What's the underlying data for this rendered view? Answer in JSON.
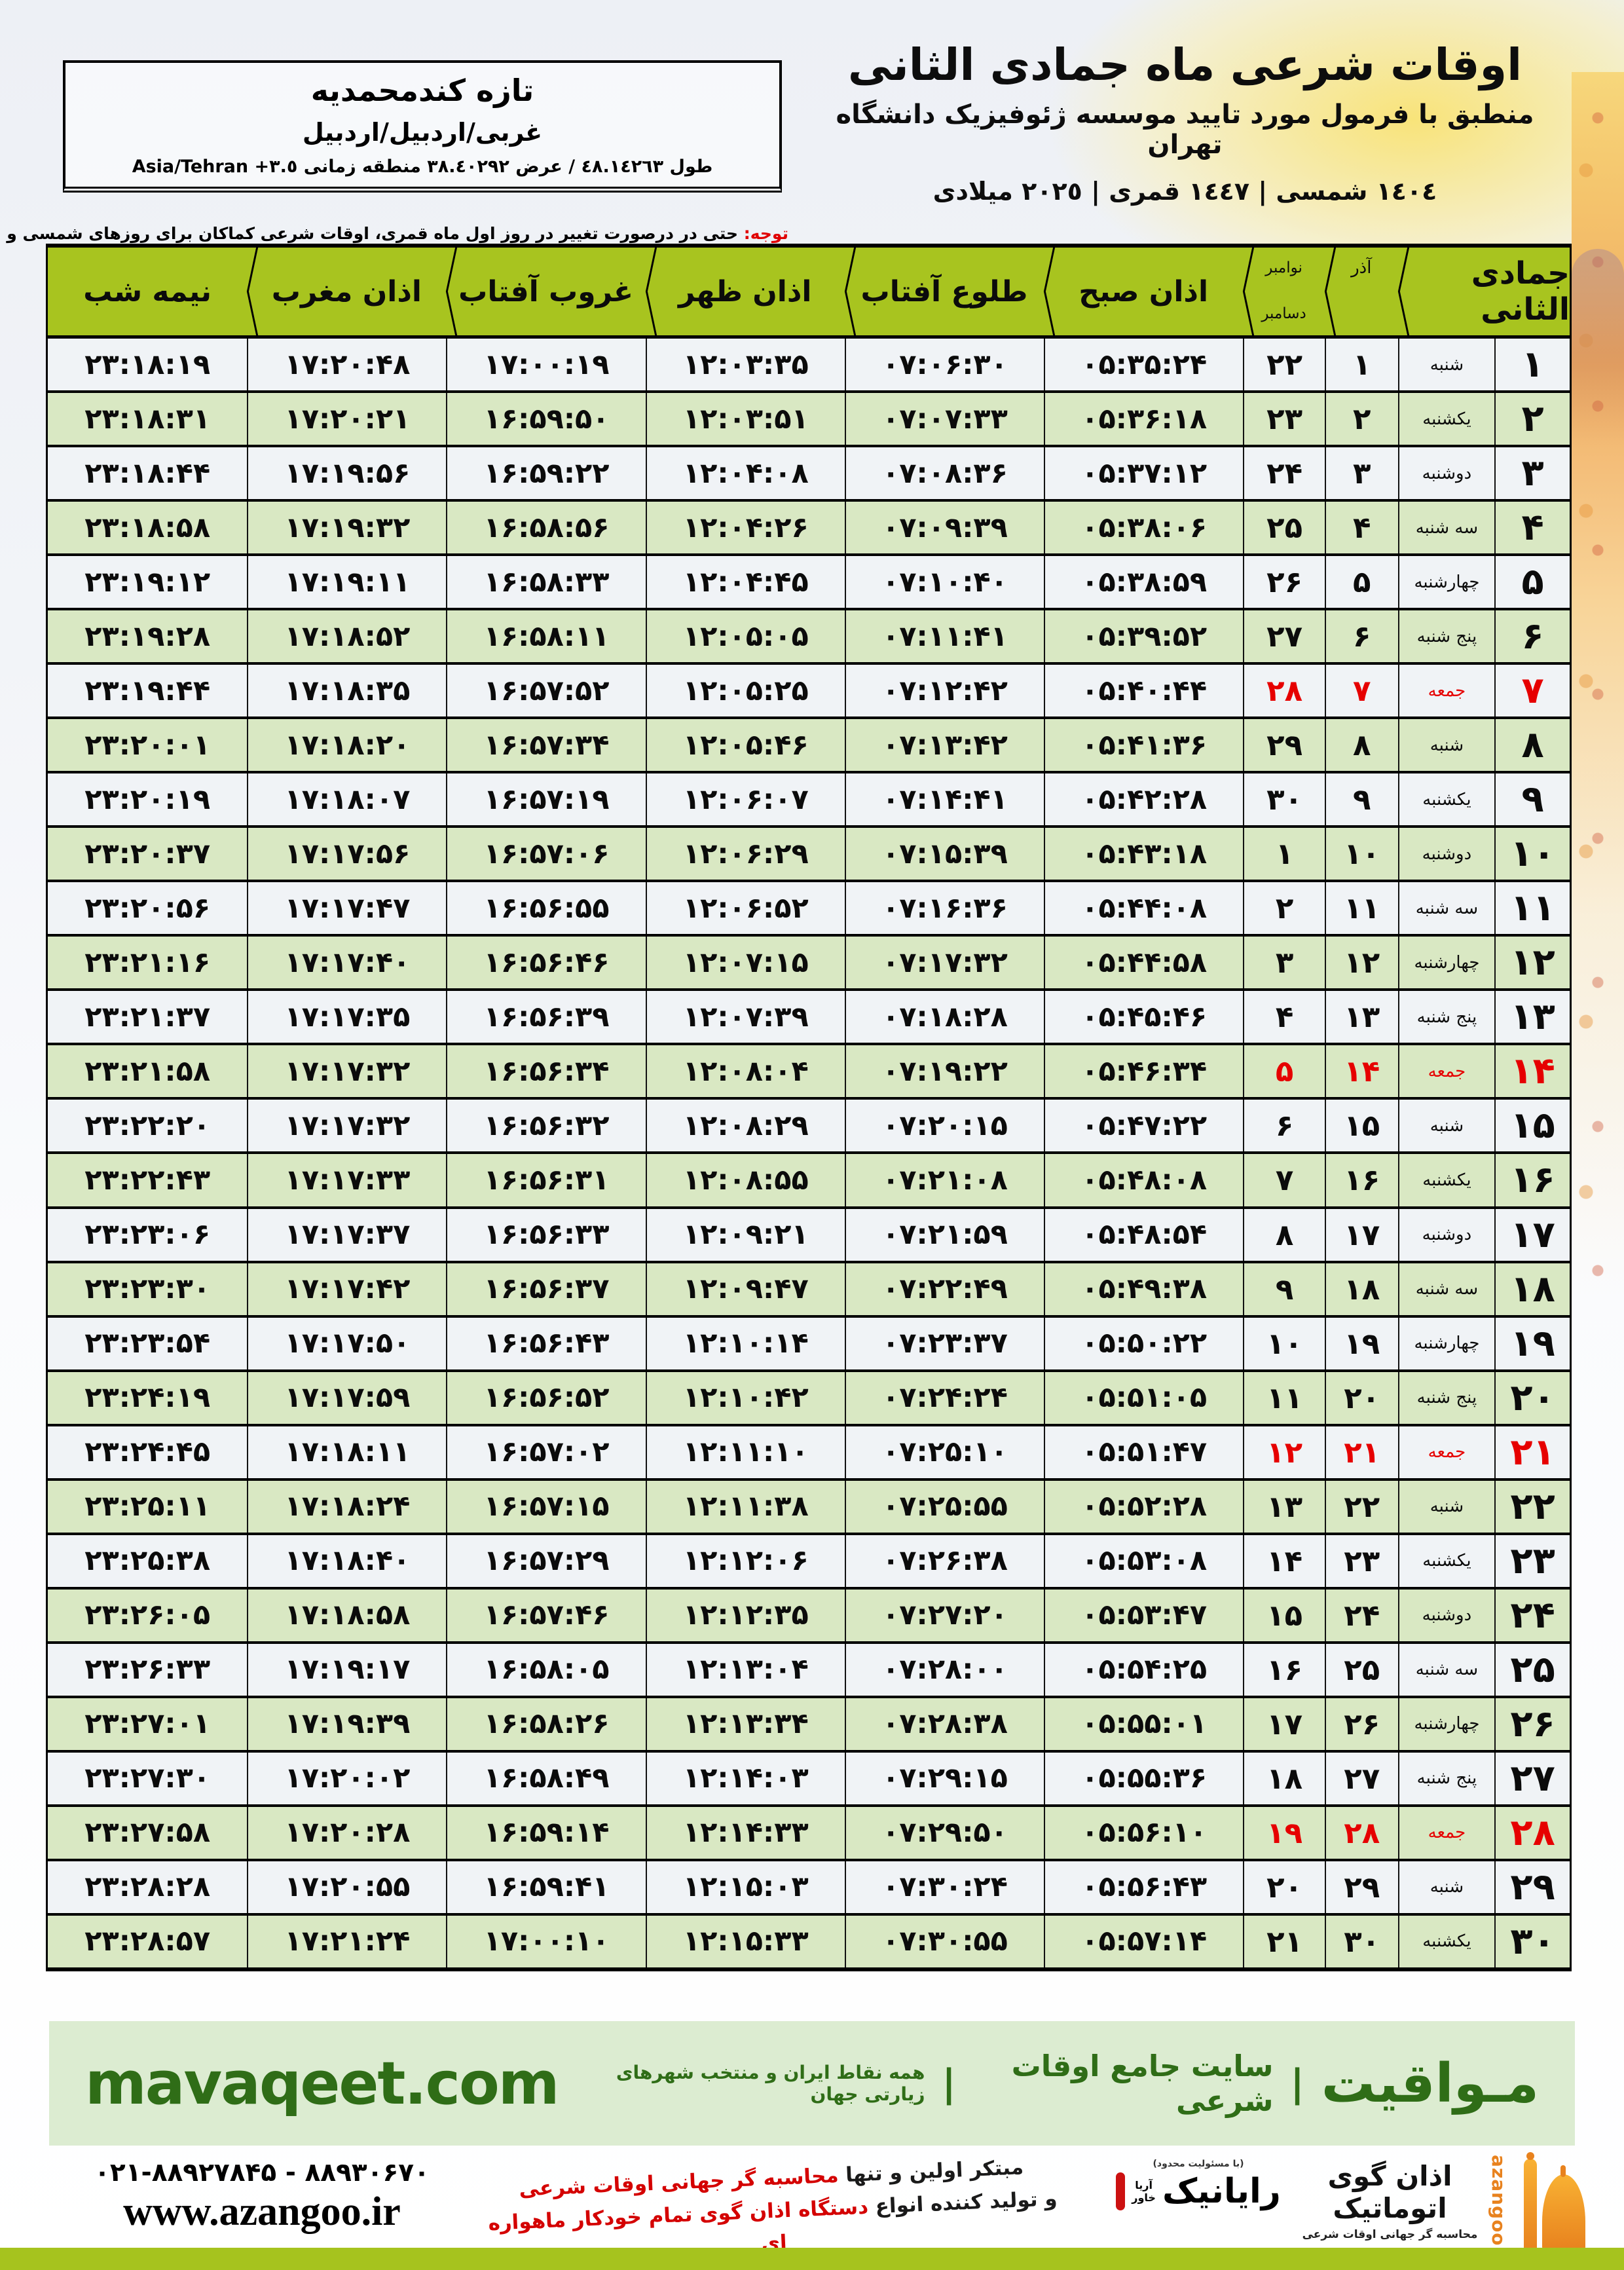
{
  "header": {
    "title": "اوقات شرعی ماه جمادی الثانی",
    "subtitle": "منطبق با فرمول مورد تایید موسسه ژئوفیزیک دانشگاه تهران",
    "year_line": "١٤٠٤ شمسی | ١٤٤٧ قمری | ٢٠٢٥ میلادی"
  },
  "location": {
    "name": "تازه کندمحمدیه",
    "region": "غربی/اردبیل/اردبیل",
    "coords_fa": "طول ٤٨.١٤٢٦٣ / عرض ٣٨.٤٠٢٩٢ منطقه زمانی",
    "coords_tz": "Asia/Tehran +٣.٥"
  },
  "notice": {
    "label": "توجه:",
    "text": " حتی در درصورت تغییر در روز اول ماه قمری، اوقات شرعی کماکان برای روزهای شمسی و میلادی معتبر است."
  },
  "table": {
    "headers": {
      "month": "جمادی الثانی",
      "solar_month": "آذر",
      "greg_top": "نوامبر",
      "greg_bottom": "دسامبر",
      "sobh": "اذان صبح",
      "tolu": "طلوع آفتاب",
      "zohr": "اذان ظهر",
      "ghorub": "غروب آفتاب",
      "maghreb": "اذان مغرب",
      "nimeshab": "نیمه شب"
    },
    "friday_rows": [
      7,
      14,
      21,
      28
    ],
    "rows": [
      [
        "۱",
        "شنبه",
        "۱",
        "۲۲",
        "۰۵:۳۵:۲۴",
        "۰۷:۰۶:۳۰",
        "۱۲:۰۳:۳۵",
        "۱۷:۰۰:۱۹",
        "۱۷:۲۰:۴۸",
        "۲۳:۱۸:۱۹"
      ],
      [
        "۲",
        "یکشنبه",
        "۲",
        "۲۳",
        "۰۵:۳۶:۱۸",
        "۰۷:۰۷:۳۳",
        "۱۲:۰۳:۵۱",
        "۱۶:۵۹:۵۰",
        "۱۷:۲۰:۲۱",
        "۲۳:۱۸:۳۱"
      ],
      [
        "۳",
        "دوشنبه",
        "۳",
        "۲۴",
        "۰۵:۳۷:۱۲",
        "۰۷:۰۸:۳۶",
        "۱۲:۰۴:۰۸",
        "۱۶:۵۹:۲۲",
        "۱۷:۱۹:۵۶",
        "۲۳:۱۸:۴۴"
      ],
      [
        "۴",
        "سه شنبه",
        "۴",
        "۲۵",
        "۰۵:۳۸:۰۶",
        "۰۷:۰۹:۳۹",
        "۱۲:۰۴:۲۶",
        "۱۶:۵۸:۵۶",
        "۱۷:۱۹:۳۲",
        "۲۳:۱۸:۵۸"
      ],
      [
        "۵",
        "چهارشنبه",
        "۵",
        "۲۶",
        "۰۵:۳۸:۵۹",
        "۰۷:۱۰:۴۰",
        "۱۲:۰۴:۴۵",
        "۱۶:۵۸:۳۳",
        "۱۷:۱۹:۱۱",
        "۲۳:۱۹:۱۲"
      ],
      [
        "۶",
        "پنج شنبه",
        "۶",
        "۲۷",
        "۰۵:۳۹:۵۲",
        "۰۷:۱۱:۴۱",
        "۱۲:۰۵:۰۵",
        "۱۶:۵۸:۱۱",
        "۱۷:۱۸:۵۲",
        "۲۳:۱۹:۲۸"
      ],
      [
        "۷",
        "جمعه",
        "۷",
        "۲۸",
        "۰۵:۴۰:۴۴",
        "۰۷:۱۲:۴۲",
        "۱۲:۰۵:۲۵",
        "۱۶:۵۷:۵۲",
        "۱۷:۱۸:۳۵",
        "۲۳:۱۹:۴۴"
      ],
      [
        "۸",
        "شنبه",
        "۸",
        "۲۹",
        "۰۵:۴۱:۳۶",
        "۰۷:۱۳:۴۲",
        "۱۲:۰۵:۴۶",
        "۱۶:۵۷:۳۴",
        "۱۷:۱۸:۲۰",
        "۲۳:۲۰:۰۱"
      ],
      [
        "۹",
        "یکشنبه",
        "۹",
        "۳۰",
        "۰۵:۴۲:۲۸",
        "۰۷:۱۴:۴۱",
        "۱۲:۰۶:۰۷",
        "۱۶:۵۷:۱۹",
        "۱۷:۱۸:۰۷",
        "۲۳:۲۰:۱۹"
      ],
      [
        "۱۰",
        "دوشنبه",
        "۱۰",
        "۱",
        "۰۵:۴۳:۱۸",
        "۰۷:۱۵:۳۹",
        "۱۲:۰۶:۲۹",
        "۱۶:۵۷:۰۶",
        "۱۷:۱۷:۵۶",
        "۲۳:۲۰:۳۷"
      ],
      [
        "۱۱",
        "سه شنبه",
        "۱۱",
        "۲",
        "۰۵:۴۴:۰۸",
        "۰۷:۱۶:۳۶",
        "۱۲:۰۶:۵۲",
        "۱۶:۵۶:۵۵",
        "۱۷:۱۷:۴۷",
        "۲۳:۲۰:۵۶"
      ],
      [
        "۱۲",
        "چهارشنبه",
        "۱۲",
        "۳",
        "۰۵:۴۴:۵۸",
        "۰۷:۱۷:۳۲",
        "۱۲:۰۷:۱۵",
        "۱۶:۵۶:۴۶",
        "۱۷:۱۷:۴۰",
        "۲۳:۲۱:۱۶"
      ],
      [
        "۱۳",
        "پنج شنبه",
        "۱۳",
        "۴",
        "۰۵:۴۵:۴۶",
        "۰۷:۱۸:۲۸",
        "۱۲:۰۷:۳۹",
        "۱۶:۵۶:۳۹",
        "۱۷:۱۷:۳۵",
        "۲۳:۲۱:۳۷"
      ],
      [
        "۱۴",
        "جمعه",
        "۱۴",
        "۵",
        "۰۵:۴۶:۳۴",
        "۰۷:۱۹:۲۲",
        "۱۲:۰۸:۰۴",
        "۱۶:۵۶:۳۴",
        "۱۷:۱۷:۳۲",
        "۲۳:۲۱:۵۸"
      ],
      [
        "۱۵",
        "شنبه",
        "۱۵",
        "۶",
        "۰۵:۴۷:۲۲",
        "۰۷:۲۰:۱۵",
        "۱۲:۰۸:۲۹",
        "۱۶:۵۶:۳۲",
        "۱۷:۱۷:۳۲",
        "۲۳:۲۲:۲۰"
      ],
      [
        "۱۶",
        "یکشنبه",
        "۱۶",
        "۷",
        "۰۵:۴۸:۰۸",
        "۰۷:۲۱:۰۸",
        "۱۲:۰۸:۵۵",
        "۱۶:۵۶:۳۱",
        "۱۷:۱۷:۳۳",
        "۲۳:۲۲:۴۳"
      ],
      [
        "۱۷",
        "دوشنبه",
        "۱۷",
        "۸",
        "۰۵:۴۸:۵۴",
        "۰۷:۲۱:۵۹",
        "۱۲:۰۹:۲۱",
        "۱۶:۵۶:۳۳",
        "۱۷:۱۷:۳۷",
        "۲۳:۲۳:۰۶"
      ],
      [
        "۱۸",
        "سه شنبه",
        "۱۸",
        "۹",
        "۰۵:۴۹:۳۸",
        "۰۷:۲۲:۴۹",
        "۱۲:۰۹:۴۷",
        "۱۶:۵۶:۳۷",
        "۱۷:۱۷:۴۲",
        "۲۳:۲۳:۳۰"
      ],
      [
        "۱۹",
        "چهارشنبه",
        "۱۹",
        "۱۰",
        "۰۵:۵۰:۲۲",
        "۰۷:۲۳:۳۷",
        "۱۲:۱۰:۱۴",
        "۱۶:۵۶:۴۳",
        "۱۷:۱۷:۵۰",
        "۲۳:۲۳:۵۴"
      ],
      [
        "۲۰",
        "پنج شنبه",
        "۲۰",
        "۱۱",
        "۰۵:۵۱:۰۵",
        "۰۷:۲۴:۲۴",
        "۱۲:۱۰:۴۲",
        "۱۶:۵۶:۵۲",
        "۱۷:۱۷:۵۹",
        "۲۳:۲۴:۱۹"
      ],
      [
        "۲۱",
        "جمعه",
        "۲۱",
        "۱۲",
        "۰۵:۵۱:۴۷",
        "۰۷:۲۵:۱۰",
        "۱۲:۱۱:۱۰",
        "۱۶:۵۷:۰۲",
        "۱۷:۱۸:۱۱",
        "۲۳:۲۴:۴۵"
      ],
      [
        "۲۲",
        "شنبه",
        "۲۲",
        "۱۳",
        "۰۵:۵۲:۲۸",
        "۰۷:۲۵:۵۵",
        "۱۲:۱۱:۳۸",
        "۱۶:۵۷:۱۵",
        "۱۷:۱۸:۲۴",
        "۲۳:۲۵:۱۱"
      ],
      [
        "۲۳",
        "یکشنبه",
        "۲۳",
        "۱۴",
        "۰۵:۵۳:۰۸",
        "۰۷:۲۶:۳۸",
        "۱۲:۱۲:۰۶",
        "۱۶:۵۷:۲۹",
        "۱۷:۱۸:۴۰",
        "۲۳:۲۵:۳۸"
      ],
      [
        "۲۴",
        "دوشنبه",
        "۲۴",
        "۱۵",
        "۰۵:۵۳:۴۷",
        "۰۷:۲۷:۲۰",
        "۱۲:۱۲:۳۵",
        "۱۶:۵۷:۴۶",
        "۱۷:۱۸:۵۸",
        "۲۳:۲۶:۰۵"
      ],
      [
        "۲۵",
        "سه شنبه",
        "۲۵",
        "۱۶",
        "۰۵:۵۴:۲۵",
        "۰۷:۲۸:۰۰",
        "۱۲:۱۳:۰۴",
        "۱۶:۵۸:۰۵",
        "۱۷:۱۹:۱۷",
        "۲۳:۲۶:۳۳"
      ],
      [
        "۲۶",
        "چهارشنبه",
        "۲۶",
        "۱۷",
        "۰۵:۵۵:۰۱",
        "۰۷:۲۸:۳۸",
        "۱۲:۱۳:۳۴",
        "۱۶:۵۸:۲۶",
        "۱۷:۱۹:۳۹",
        "۲۳:۲۷:۰۱"
      ],
      [
        "۲۷",
        "پنج شنبه",
        "۲۷",
        "۱۸",
        "۰۵:۵۵:۳۶",
        "۰۷:۲۹:۱۵",
        "۱۲:۱۴:۰۳",
        "۱۶:۵۸:۴۹",
        "۱۷:۲۰:۰۲",
        "۲۳:۲۷:۳۰"
      ],
      [
        "۲۸",
        "جمعه",
        "۲۸",
        "۱۹",
        "۰۵:۵۶:۱۰",
        "۰۷:۲۹:۵۰",
        "۱۲:۱۴:۳۳",
        "۱۶:۵۹:۱۴",
        "۱۷:۲۰:۲۸",
        "۲۳:۲۷:۵۸"
      ],
      [
        "۲۹",
        "شنبه",
        "۲۹",
        "۲۰",
        "۰۵:۵۶:۴۳",
        "۰۷:۳۰:۲۴",
        "۱۲:۱۵:۰۳",
        "۱۶:۵۹:۴۱",
        "۱۷:۲۰:۵۵",
        "۲۳:۲۸:۲۸"
      ],
      [
        "۳۰",
        "یکشنبه",
        "۳۰",
        "۲۱",
        "۰۵:۵۷:۱۴",
        "۰۷:۳۰:۵۵",
        "۱۲:۱۵:۳۳",
        "۱۷:۰۰:۱۰",
        "۱۷:۲۱:۲۴",
        "۲۳:۲۸:۵۷"
      ]
    ]
  },
  "footer": {
    "brand": "مـواقیت",
    "sep": "|",
    "site_desc": "سایت جامع اوقات شرعی",
    "site_desc2": "همه نقاط ایران و منتخب شهرهای زیارتی جهان",
    "site_url": "mavaqeet.com",
    "tagline1_black": "مبتکر اولین و تنها ",
    "tagline1_red": "محاسبه گر جهانی اوقات شرعی",
    "tagline2_black": "و تولید کننده انواع ",
    "tagline2_red": "دستگاه اذان گوی تمام خودکار ماهواره ای",
    "phone": "۰۲۱-۸۸۹۲۷۸۴۵ - ۸۸۹۳۰۶۷۰",
    "website": "www.azangoo.ir",
    "rayanik_tiny": "(با مسئولیت محدود)",
    "rayanik_name": "رایانیک",
    "rayanik_sub1": "خاور",
    "rayanik_sub2": "آریا",
    "azangoo_name": "اذان گوی اتوماتیک",
    "azangoo_sub": "محاسبه گر جهانی اوقات شرعی",
    "azangoo_en": "azangoo"
  },
  "colors": {
    "header_green": "#a8c41f",
    "row_green": "#d9e8c3",
    "row_light": "#f0f3f6",
    "friday_red": "#e60000",
    "band_green": "#dcecd1",
    "brand_green": "#2f6d17",
    "accent_orange": "#e8821e",
    "strip_green": "#a6c31e"
  }
}
